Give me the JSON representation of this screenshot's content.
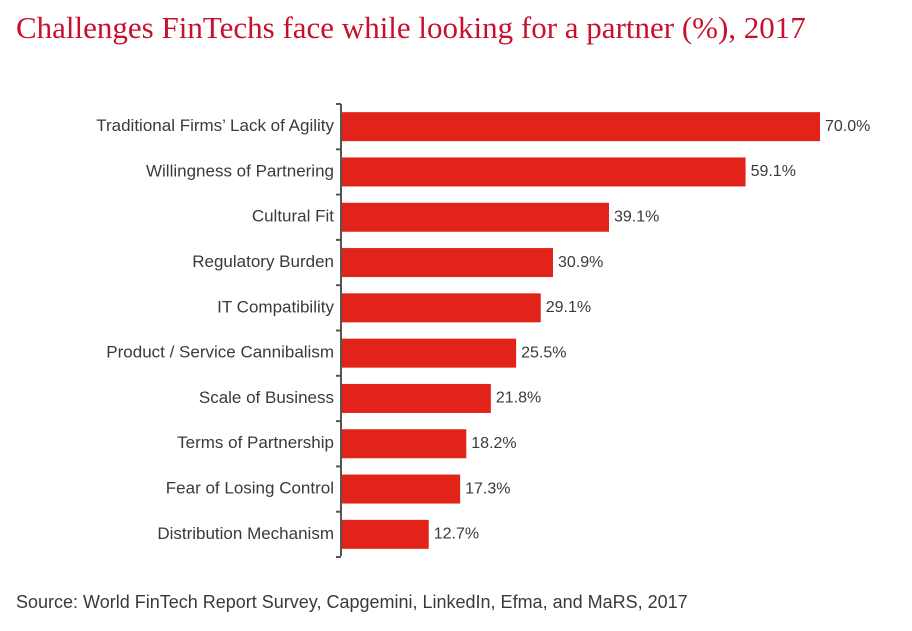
{
  "chart_data": {
    "type": "bar",
    "orientation": "horizontal",
    "title": "Challenges FinTechs face while looking for a partner (%), 2017",
    "categories": [
      "Traditional Firms’ Lack of Agility",
      "Willingness of Partnering",
      "Cultural Fit",
      "Regulatory Burden",
      "IT Compatibility",
      "Product / Service Cannibalism",
      "Scale of Business",
      "Terms of Partnership",
      "Fear of Losing Control",
      "Distribution Mechanism"
    ],
    "values": [
      70.0,
      59.1,
      39.1,
      30.9,
      29.1,
      25.5,
      21.8,
      18.2,
      17.3,
      12.7
    ],
    "value_labels": [
      "70.0%",
      "59.1%",
      "39.1%",
      "30.9%",
      "29.1%",
      "25.5%",
      "21.8%",
      "18.2%",
      "17.3%",
      "12.7%"
    ],
    "xlim": [
      0,
      70
    ],
    "grid": false,
    "bar_color": "#e2231a",
    "title_color": "#c8102e",
    "text_color": "#3a3a3a",
    "source": "Source: World FinTech Report Survey, Capgemini, LinkedIn, Efma, and MaRS, 2017"
  }
}
